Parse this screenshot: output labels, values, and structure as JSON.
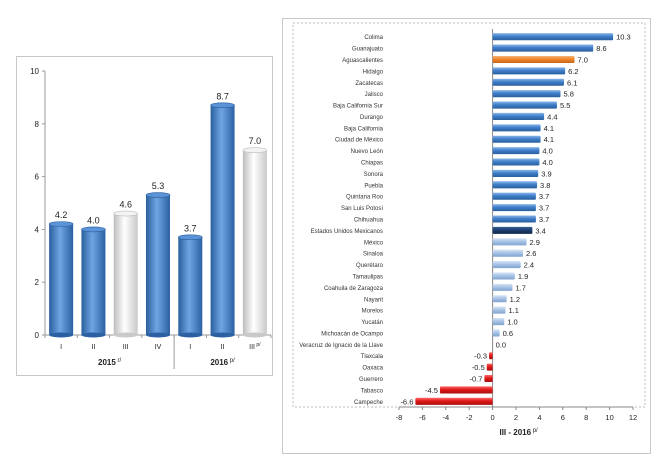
{
  "colors": {
    "blue_bar": "#3f7ec8",
    "white_bar": "#e6e6e6",
    "orange_bar": "#f0862a",
    "dark_bar": "#1c3f70",
    "light_blue_bar": "#a9c4e6",
    "red_bar": "#e01818"
  },
  "chart_data": [
    {
      "type": "bar",
      "title": "",
      "xlabel": "",
      "ylabel": "",
      "ylim": [
        0,
        10
      ],
      "yticks": [
        "0",
        "2",
        "4",
        "6",
        "8",
        "10"
      ],
      "categories": [
        "I",
        "II",
        "III",
        "IV",
        "I",
        "II",
        "III"
      ],
      "category_labels": [
        "I",
        "II",
        "III",
        "IV",
        "I",
        "II",
        "III p/"
      ],
      "values": [
        4.2,
        4.0,
        4.6,
        5.3,
        3.7,
        8.7,
        7.0
      ],
      "value_labels": [
        "4.2",
        "4.0",
        "4.6",
        "5.3",
        "3.7",
        "8.7",
        "7.0"
      ],
      "bar_styles": [
        "blue",
        "blue",
        "white",
        "blue",
        "blue",
        "blue",
        "white"
      ],
      "year_groups": [
        {
          "label": "2015",
          "note": "r/"
        },
        {
          "label": "2016",
          "note": "p/"
        }
      ],
      "grid": false
    },
    {
      "type": "bar",
      "orientation": "horizontal",
      "title": "",
      "xlabel": "III - 2016",
      "xlabel_note": "p/",
      "xlim": [
        -8,
        12
      ],
      "xticks": [
        "-8",
        "-6",
        "-4",
        "-2",
        "0",
        "2",
        "4",
        "6",
        "8",
        "10",
        "12"
      ],
      "categories": [
        "Colima",
        "Guanajuato",
        "Aguascalientes",
        "Hidalgo",
        "Zacatecas",
        "Jalisco",
        "Baja California Sur",
        "Durango",
        "Baja California",
        "Ciudad de México",
        "Nuevo León",
        "Chiapas",
        "Sonora",
        "Puebla",
        "Quintana Roo",
        "San Luis Potosí",
        "Chihuahua",
        "Estados Unidos Mexicanos",
        "México",
        "Sinaloa",
        "Querétaro",
        "Tamaulipas",
        "Coahuila de Zaragoza",
        "Nayarit",
        "Morelos",
        "Yucatán",
        "Michoacán de Ocampo",
        "Veracruz de Ignacio de la Llave",
        "Tlaxcala",
        "Oaxaca",
        "Guerrero",
        "Tabasco",
        "Campeche"
      ],
      "values": [
        10.3,
        8.6,
        7.0,
        6.2,
        6.1,
        5.8,
        5.5,
        4.4,
        4.1,
        4.1,
        4.0,
        4.0,
        3.9,
        3.8,
        3.7,
        3.7,
        3.7,
        3.4,
        2.9,
        2.6,
        2.4,
        1.9,
        1.7,
        1.2,
        1.1,
        1.0,
        0.6,
        0.0,
        -0.3,
        -0.5,
        -0.7,
        -4.5,
        -6.6
      ],
      "value_labels": [
        "10.3",
        "8.6",
        "7.0",
        "6.2",
        "6.1",
        "5.8",
        "5.5",
        "4.4",
        "4.1",
        "4.1",
        "4.0",
        "4.0",
        "3.9",
        "3.8",
        "3.7",
        "3.7",
        "3.7",
        "3.4",
        "2.9",
        "2.6",
        "2.4",
        "1.9",
        "1.7",
        "1.2",
        "1.1",
        "1.0",
        "0.6",
        "0.0",
        "-0.3",
        "-0.5",
        "-0.7",
        "-4.5",
        "-6.6"
      ],
      "bar_styles": [
        "blue",
        "blue",
        "orange",
        "blue",
        "blue",
        "blue",
        "blue",
        "blue",
        "blue",
        "blue",
        "blue",
        "blue",
        "blue",
        "blue",
        "blue",
        "blue",
        "blue",
        "dark",
        "lightblue",
        "lightblue",
        "lightblue",
        "lightblue",
        "lightblue",
        "lightblue",
        "lightblue",
        "lightblue",
        "lightblue",
        "lightblue",
        "red",
        "red",
        "red",
        "red",
        "red"
      ],
      "grid": false
    }
  ]
}
